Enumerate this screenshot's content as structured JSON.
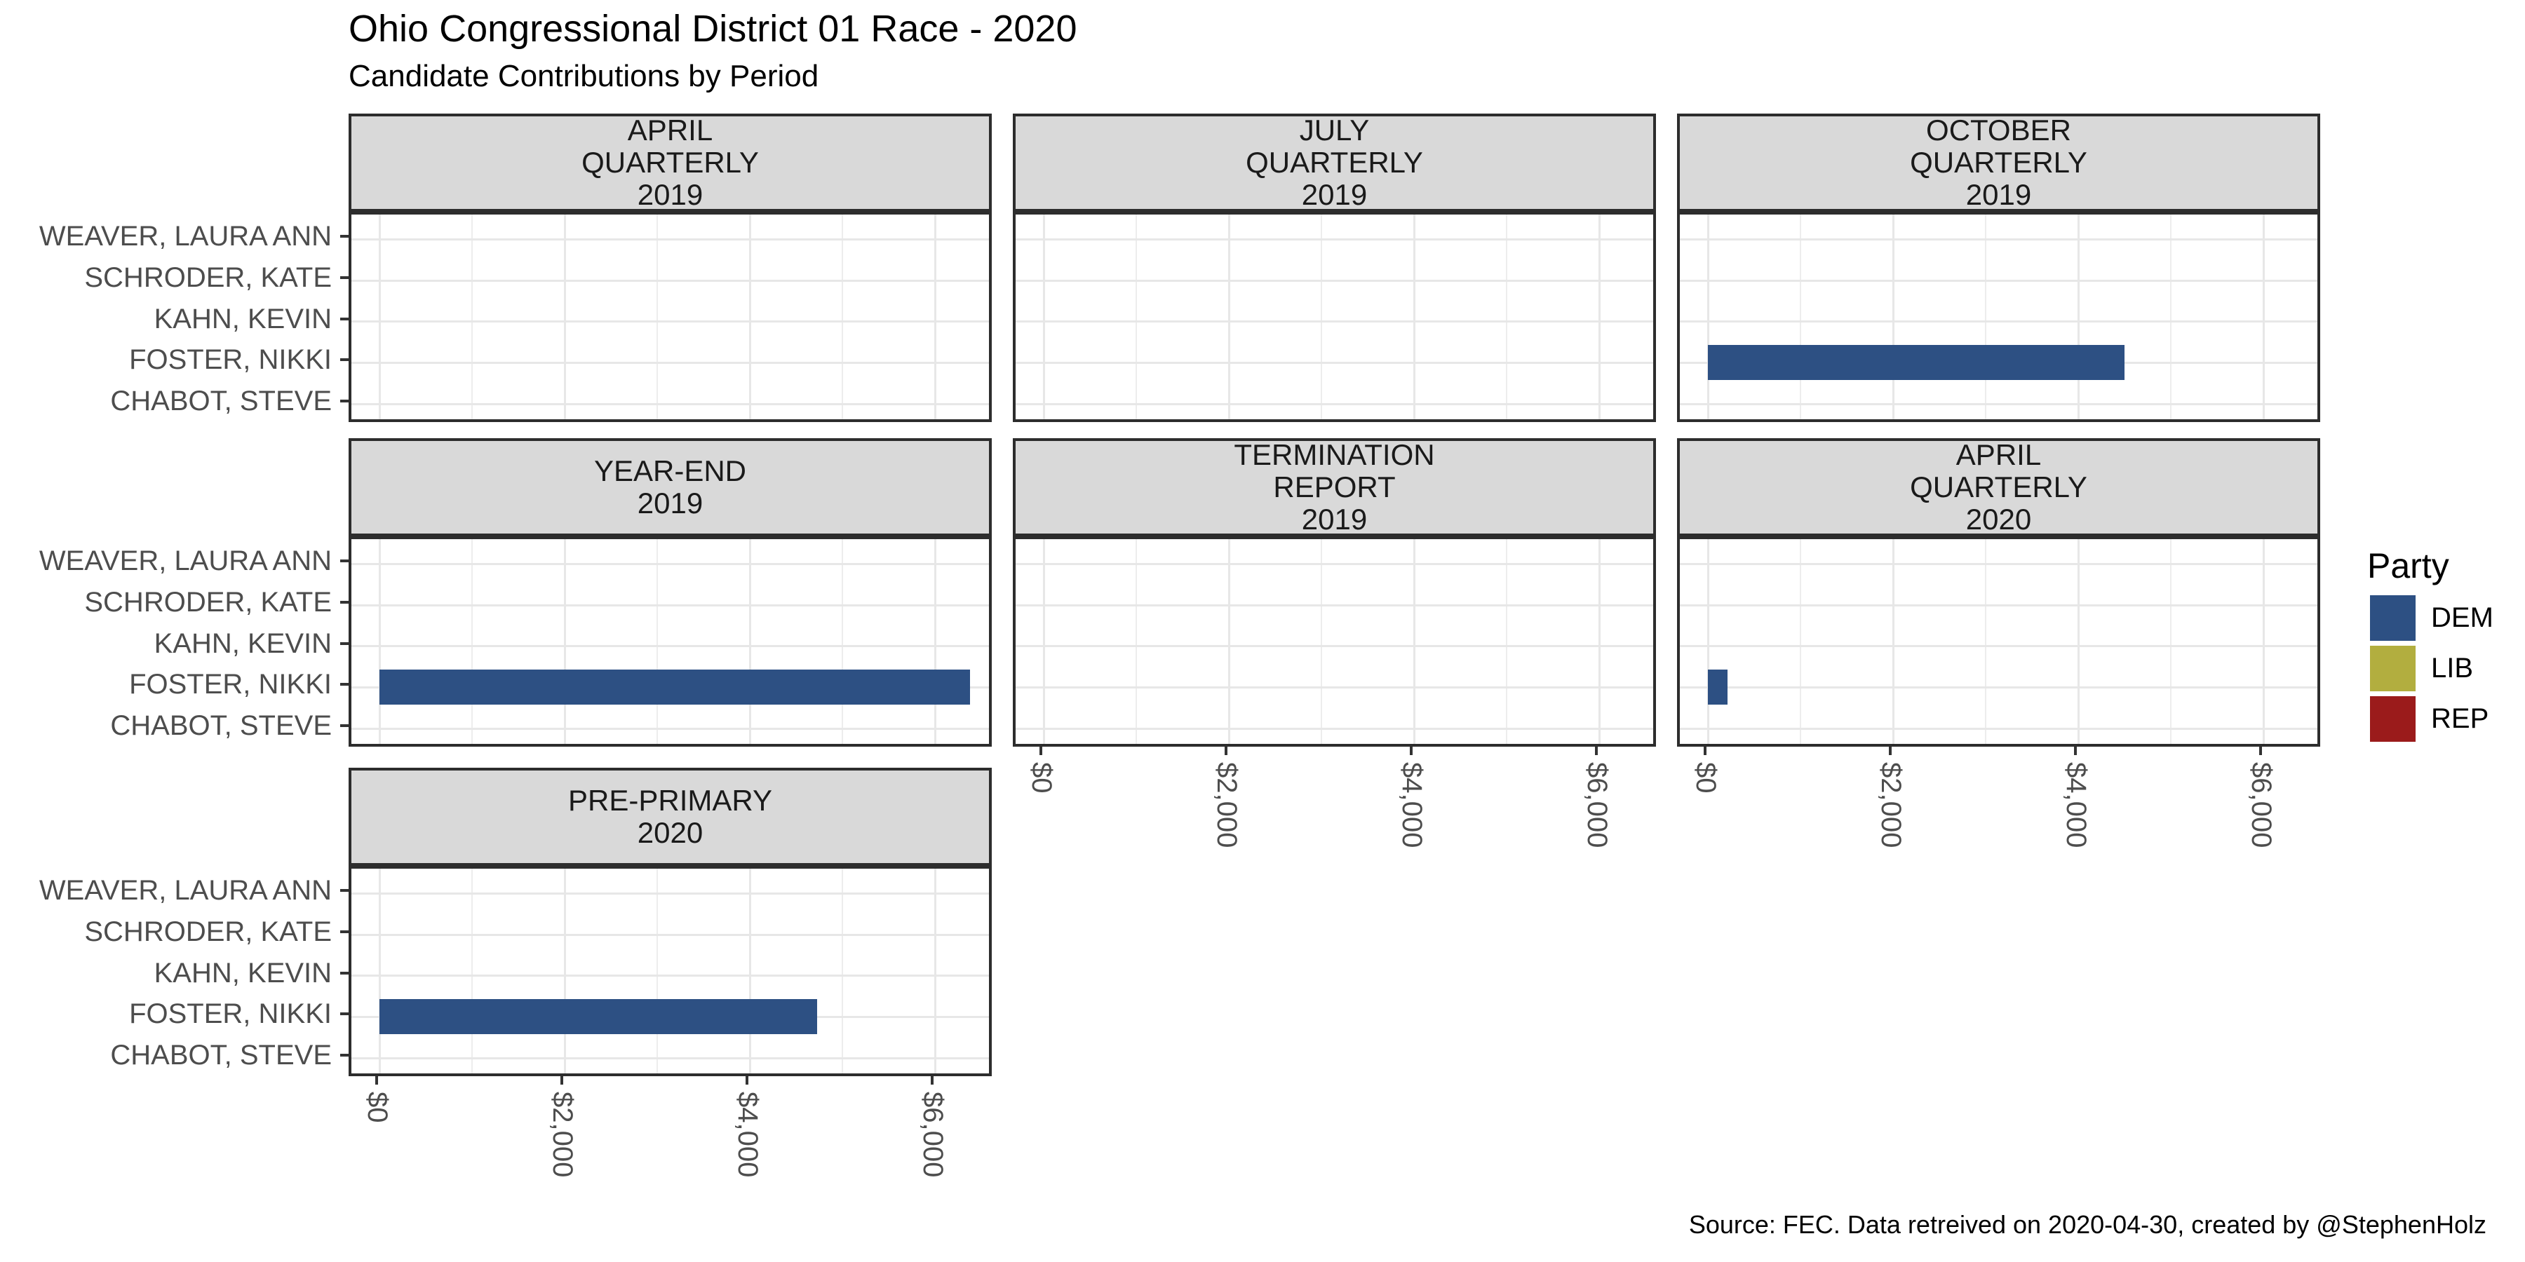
{
  "header": {
    "title": "Ohio Congressional District 01 Race - 2020",
    "subtitle": "Candidate Contributions by Period"
  },
  "caption": "Source: FEC. Data retreived on 2020-04-30, created by @StephenHolz",
  "legend": {
    "title": "Party",
    "position": "right",
    "entries": [
      {
        "label": "DEM",
        "color": "#2D5083"
      },
      {
        "label": "LIB",
        "color": "#B2AE3F"
      },
      {
        "label": "REP",
        "color": "#9B1B1B"
      }
    ]
  },
  "y_axis": {
    "categories_top_to_bottom": [
      "WEAVER, LAURA ANN",
      "SCHRODER, KATE",
      "KAHN, KEVIN",
      "FOSTER, NIKKI",
      "CHABOT, STEVE"
    ]
  },
  "x_axis": {
    "tick_values": [
      0,
      2000,
      4000,
      6000
    ],
    "tick_labels": [
      "$0",
      "$2,000",
      "$4,000",
      "$6,000"
    ],
    "range": [
      0,
      6700
    ],
    "minor_grid_every": 1000,
    "label_rotation_deg": 90
  },
  "chart_data": {
    "type": "bar",
    "orientation": "horizontal",
    "title": "Ohio Congressional District 01 Race - 2020",
    "subtitle": "Candidate Contributions by Period",
    "caption": "Source: FEC. Data retreived on 2020-04-30, created by @StephenHolz",
    "grid": true,
    "categories_top_to_bottom": [
      "WEAVER, LAURA ANN",
      "SCHRODER, KATE",
      "KAHN, KEVIN",
      "FOSTER, NIKKI",
      "CHABOT, STEVE"
    ],
    "x_axis": {
      "tick_values": [
        0,
        2000,
        4000,
        6000
      ],
      "tick_labels": [
        "$0",
        "$2,000",
        "$4,000",
        "$6,000"
      ],
      "range": [
        0,
        6700
      ]
    },
    "legend": {
      "title": "Party",
      "position": "right",
      "entries": [
        {
          "label": "DEM",
          "color": "#2D5083"
        },
        {
          "label": "LIB",
          "color": "#B2AE3F"
        },
        {
          "label": "REP",
          "color": "#9B1B1B"
        }
      ]
    },
    "facets": [
      {
        "period": "APRIL QUARTERLY 2019",
        "label_lines": [
          "APRIL",
          "QUARTERLY",
          "2019"
        ],
        "bars": []
      },
      {
        "period": "JULY QUARTERLY 2019",
        "label_lines": [
          "JULY",
          "QUARTERLY",
          "2019"
        ],
        "bars": []
      },
      {
        "period": "OCTOBER QUARTERLY 2019",
        "label_lines": [
          "OCTOBER",
          "QUARTERLY",
          "2019"
        ],
        "bars": [
          {
            "candidate": "FOSTER, NIKKI",
            "party": "DEM",
            "value": 4500
          }
        ]
      },
      {
        "period": "YEAR-END 2019",
        "label_lines": [
          "YEAR-END",
          "2019"
        ],
        "bars": [
          {
            "candidate": "FOSTER, NIKKI",
            "party": "DEM",
            "value": 6380
          }
        ]
      },
      {
        "period": "TERMINATION REPORT 2019",
        "label_lines": [
          "TERMINATION",
          "REPORT",
          "2019"
        ],
        "bars": []
      },
      {
        "period": "APRIL QUARTERLY 2020",
        "label_lines": [
          "APRIL",
          "QUARTERLY",
          "2020"
        ],
        "bars": [
          {
            "candidate": "FOSTER, NIKKI",
            "party": "DEM",
            "value": 210
          }
        ]
      },
      {
        "period": "PRE-PRIMARY 2020",
        "label_lines": [
          "PRE-PRIMARY",
          "2020"
        ],
        "bars": [
          {
            "candidate": "FOSTER, NIKKI",
            "party": "DEM",
            "value": 4730
          }
        ]
      }
    ]
  }
}
